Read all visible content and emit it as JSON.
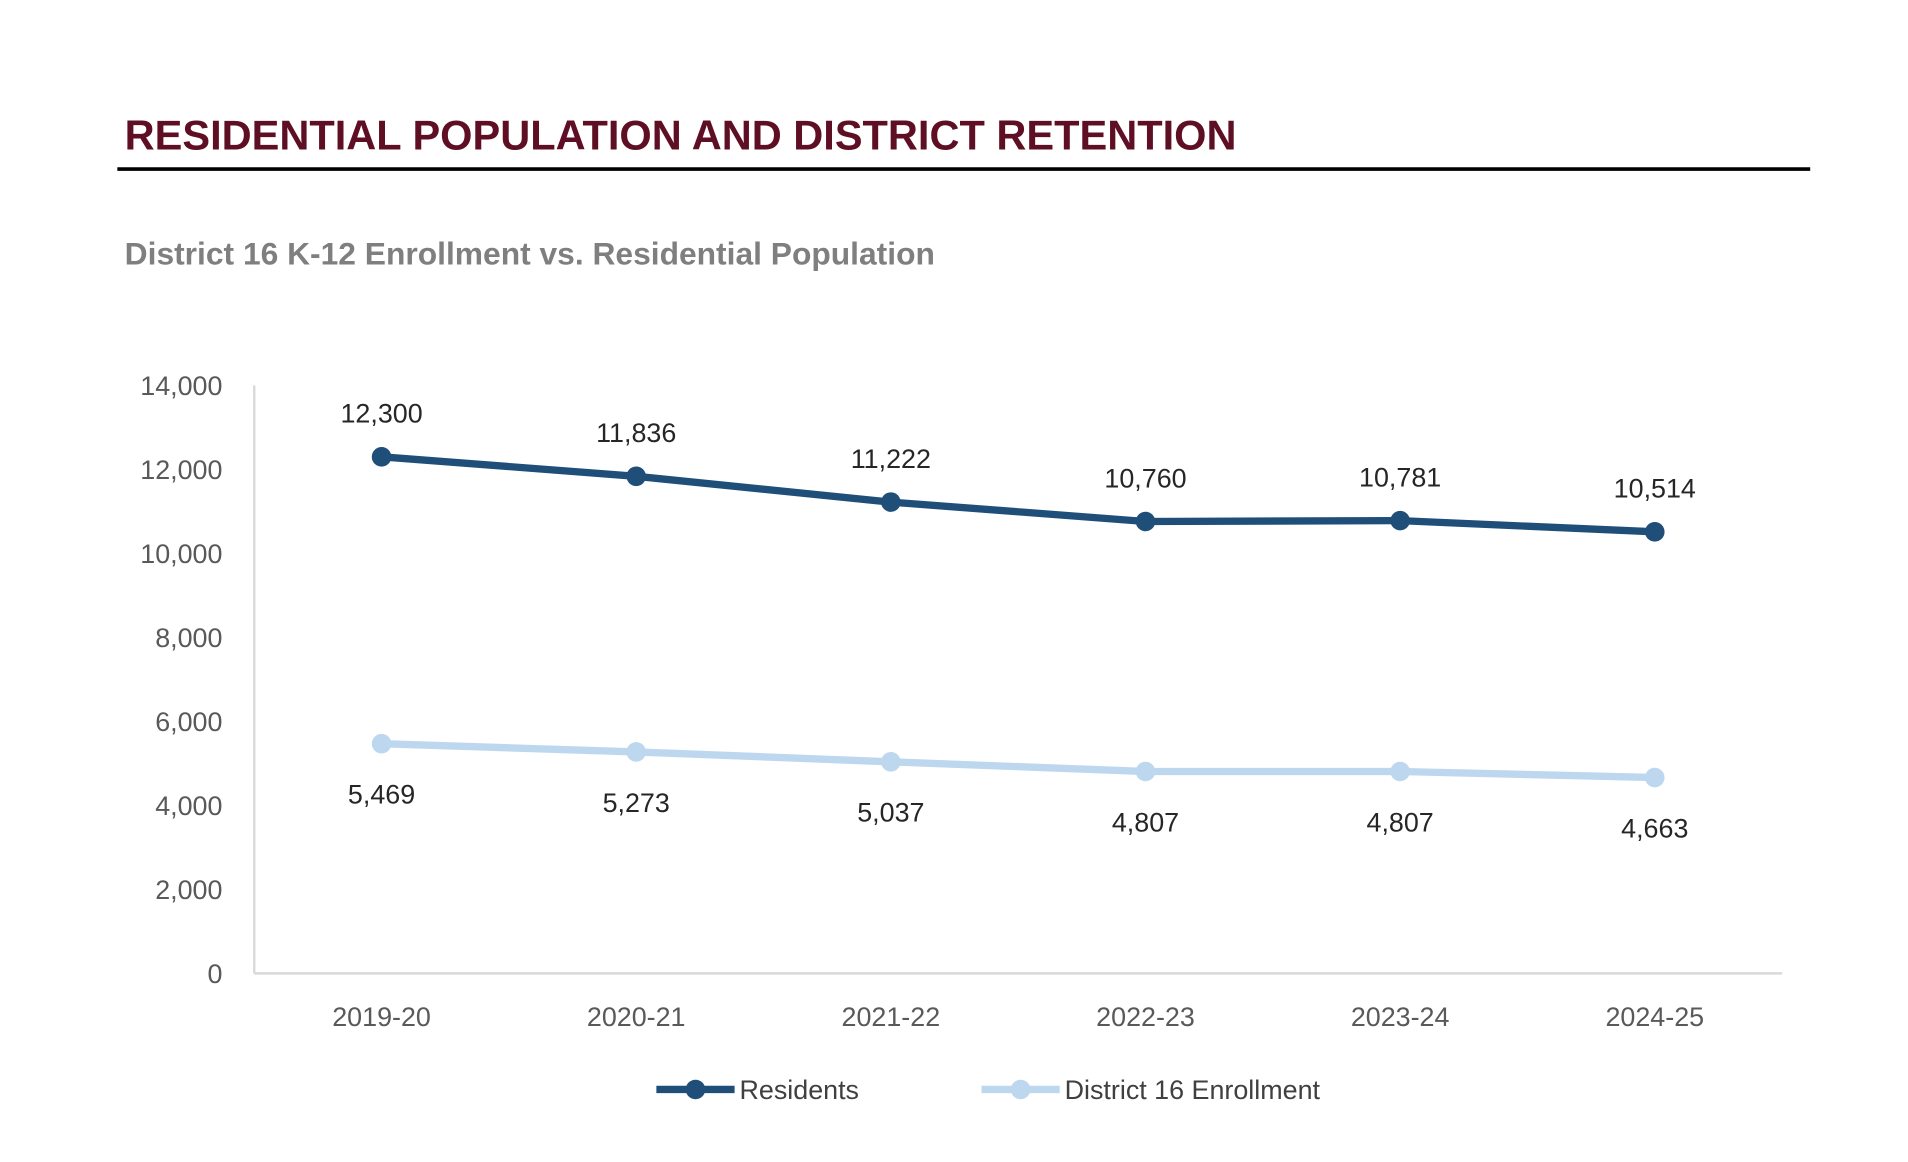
{
  "header": {
    "title": "RESIDENTIAL POPULATION AND DISTRICT RETENTION"
  },
  "chart_data": {
    "type": "line",
    "title": "District 16 K-12 Enrollment vs. Residential Population",
    "xlabel": "",
    "ylabel": "",
    "categories": [
      "2019-20",
      "2020-21",
      "2021-22",
      "2022-23",
      "2023-24",
      "2024-25"
    ],
    "ylim": [
      0,
      14000
    ],
    "yticks": [
      0,
      2000,
      4000,
      6000,
      8000,
      10000,
      12000,
      14000
    ],
    "ytick_labels": [
      "0",
      "2,000",
      "4,000",
      "6,000",
      "8,000",
      "10,000",
      "12,000",
      "14,000"
    ],
    "grid": false,
    "legend_position": "bottom",
    "series": [
      {
        "name": "Residents",
        "color": "#1f4e79",
        "values": [
          12300,
          11836,
          11222,
          10760,
          10781,
          10514
        ],
        "labels": [
          "12,300",
          "11,836",
          "11,222",
          "10,760",
          "10,781",
          "10,514"
        ],
        "label_position": "above"
      },
      {
        "name": "District 16 Enrollment",
        "color": "#bdd7ee",
        "values": [
          5469,
          5273,
          5037,
          4807,
          4807,
          4663
        ],
        "labels": [
          "5,469",
          "5,273",
          "5,037",
          "4,807",
          "4,807",
          "4,663"
        ],
        "label_position": "below"
      }
    ]
  }
}
